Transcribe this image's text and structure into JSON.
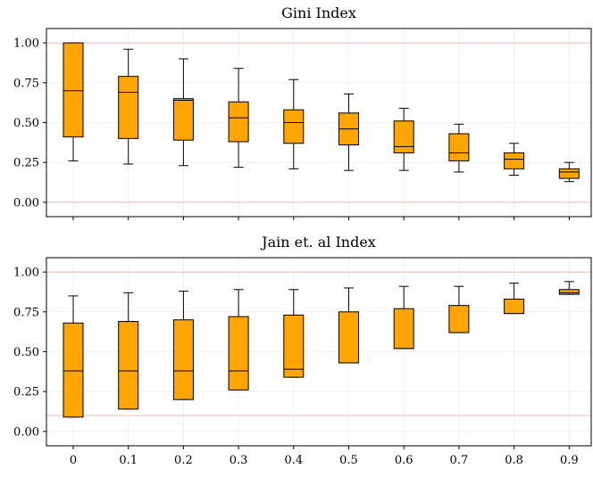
{
  "colors": {
    "box_fill": "#FFA500",
    "reference_line": "#F3B8B2",
    "grid": "#E8E8E8"
  },
  "chart_data": [
    {
      "type": "box",
      "title": "Gini Index",
      "categories": [
        "0",
        "0.1",
        "0.2",
        "0.3",
        "0.4",
        "0.5",
        "0.6",
        "0.7",
        "0.8",
        "0.9"
      ],
      "y_ticks": [
        "0.00",
        "0.25",
        "0.50",
        "0.75",
        "1.00"
      ],
      "ylim": [
        -0.09,
        1.09
      ],
      "reference_lines": [
        0.0,
        1.0
      ],
      "grid": true,
      "boxes": [
        {
          "whislo": 0.26,
          "q1": 0.41,
          "med": 0.7,
          "q3": 1.0,
          "whishi": 1.0
        },
        {
          "whislo": 0.24,
          "q1": 0.4,
          "med": 0.69,
          "q3": 0.79,
          "whishi": 0.96
        },
        {
          "whislo": 0.23,
          "q1": 0.39,
          "med": 0.64,
          "q3": 0.65,
          "whishi": 0.9
        },
        {
          "whislo": 0.22,
          "q1": 0.38,
          "med": 0.53,
          "q3": 0.63,
          "whishi": 0.84
        },
        {
          "whislo": 0.21,
          "q1": 0.37,
          "med": 0.5,
          "q3": 0.58,
          "whishi": 0.77
        },
        {
          "whislo": 0.2,
          "q1": 0.36,
          "med": 0.46,
          "q3": 0.56,
          "whishi": 0.68
        },
        {
          "whislo": 0.2,
          "q1": 0.31,
          "med": 0.35,
          "q3": 0.51,
          "whishi": 0.59
        },
        {
          "whislo": 0.19,
          "q1": 0.26,
          "med": 0.31,
          "q3": 0.43,
          "whishi": 0.49
        },
        {
          "whislo": 0.17,
          "q1": 0.21,
          "med": 0.27,
          "q3": 0.31,
          "whishi": 0.37
        },
        {
          "whislo": 0.13,
          "q1": 0.15,
          "med": 0.19,
          "q3": 0.21,
          "whishi": 0.25
        }
      ]
    },
    {
      "type": "box",
      "title": "Jain et. al Index",
      "categories": [
        "0",
        "0.1",
        "0.2",
        "0.3",
        "0.4",
        "0.5",
        "0.6",
        "0.7",
        "0.8",
        "0.9"
      ],
      "y_ticks": [
        "0.00",
        "0.25",
        "0.50",
        "0.75",
        "1.00"
      ],
      "ylim": [
        -0.09,
        1.09
      ],
      "reference_lines": [
        0.1,
        1.0
      ],
      "grid": true,
      "boxes": [
        {
          "whislo": 0.09,
          "q1": 0.09,
          "med": 0.38,
          "q3": 0.68,
          "whishi": 0.85
        },
        {
          "whislo": 0.14,
          "q1": 0.14,
          "med": 0.38,
          "q3": 0.69,
          "whishi": 0.87
        },
        {
          "whislo": 0.2,
          "q1": 0.2,
          "med": 0.38,
          "q3": 0.7,
          "whishi": 0.88
        },
        {
          "whislo": 0.26,
          "q1": 0.26,
          "med": 0.38,
          "q3": 0.72,
          "whishi": 0.89
        },
        {
          "whislo": 0.34,
          "q1": 0.34,
          "med": 0.39,
          "q3": 0.73,
          "whishi": 0.89
        },
        {
          "whislo": 0.43,
          "q1": 0.43,
          "med": 0.43,
          "q3": 0.75,
          "whishi": 0.9
        },
        {
          "whislo": 0.52,
          "q1": 0.52,
          "med": 0.52,
          "q3": 0.77,
          "whishi": 0.91
        },
        {
          "whislo": 0.62,
          "q1": 0.62,
          "med": 0.62,
          "q3": 0.79,
          "whishi": 0.91
        },
        {
          "whislo": 0.74,
          "q1": 0.74,
          "med": 0.74,
          "q3": 0.83,
          "whishi": 0.93
        },
        {
          "whislo": 0.86,
          "q1": 0.86,
          "med": 0.87,
          "q3": 0.89,
          "whishi": 0.94
        }
      ]
    }
  ]
}
